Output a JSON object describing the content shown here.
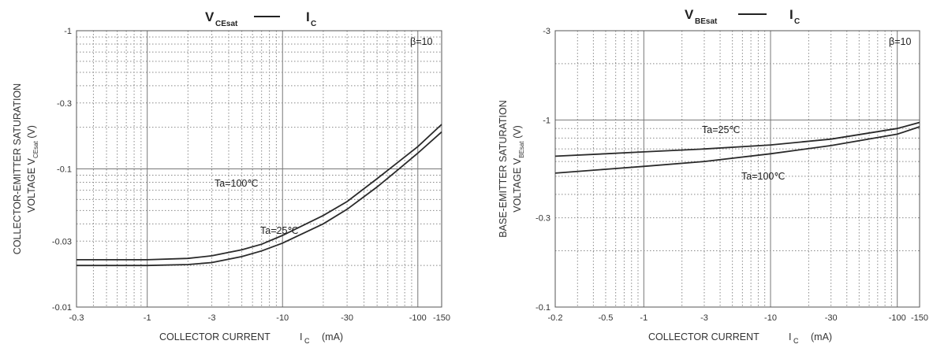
{
  "chart_data": [
    {
      "type": "line",
      "title_main": "V",
      "title_sub": "CEsat",
      "title_right_main": "I",
      "title_right_sub": "C",
      "xlabel": "COLLECTOR CURRENT",
      "xlabel_symbol": "I",
      "xlabel_symbol_sub": "C",
      "xlabel_unit": "(mA)",
      "ylabel_line1": "COLLECTOR-EMITTER SATURATION",
      "ylabel_line2_prefix": "VOLTAGE",
      "ylabel_symbol": "V",
      "ylabel_symbol_sub": "CEsat",
      "ylabel_unit": "(V)",
      "x_scale": "log",
      "y_scale": "log",
      "xlim": [
        -0.3,
        -150
      ],
      "ylim": [
        -0.01,
        -1
      ],
      "x_ticks": [
        "-0.3",
        "-1",
        "-3",
        "-10",
        "-30",
        "-100",
        "-150"
      ],
      "y_ticks": [
        "-1",
        "-0.3",
        "-0.1",
        "-0.03",
        "-0.01"
      ],
      "note": "β=10",
      "series": [
        {
          "name": "Ta=100℃",
          "x": [
            -0.3,
            -1,
            -2,
            -3,
            -5,
            -7,
            -10,
            -20,
            -30,
            -50,
            -70,
            -100,
            -150
          ],
          "y": [
            -0.022,
            -0.022,
            -0.0225,
            -0.0235,
            -0.026,
            -0.0285,
            -0.033,
            -0.046,
            -0.058,
            -0.085,
            -0.11,
            -0.145,
            -0.21
          ]
        },
        {
          "name": "Ta=25℃",
          "x": [
            -0.3,
            -1,
            -2,
            -3,
            -5,
            -7,
            -10,
            -20,
            -30,
            -50,
            -70,
            -100,
            -150
          ],
          "y": [
            -0.02,
            -0.02,
            -0.0203,
            -0.021,
            -0.0232,
            -0.0255,
            -0.029,
            -0.04,
            -0.051,
            -0.074,
            -0.097,
            -0.13,
            -0.185
          ]
        }
      ]
    },
    {
      "type": "line",
      "title_main": "V",
      "title_sub": "BEsat",
      "title_right_main": "I",
      "title_right_sub": "C",
      "xlabel": "COLLECTOR CURRENT",
      "xlabel_symbol": "I",
      "xlabel_symbol_sub": "C",
      "xlabel_unit": "(mA)",
      "ylabel_line1": "BASE-EMITTER SATURATION",
      "ylabel_line2_prefix": "VOLTAGE",
      "ylabel_symbol": "V",
      "ylabel_symbol_sub": "BEsat",
      "ylabel_unit": "(V)",
      "x_scale": "log",
      "y_scale": "log",
      "xlim": [
        -0.2,
        -150
      ],
      "ylim": [
        -0.1,
        -3
      ],
      "x_ticks": [
        "-0.2",
        "-0.5",
        "-1",
        "-3",
        "-10",
        "-30",
        "-100",
        "-150"
      ],
      "y_ticks": [
        "-3",
        "-1",
        "-0.3",
        "-0.1"
      ],
      "note": "β=10",
      "series": [
        {
          "name": "Ta=25℃",
          "x": [
            -0.2,
            -0.5,
            -1,
            -3,
            -10,
            -30,
            -100,
            -150
          ],
          "y": [
            -0.64,
            -0.66,
            -0.675,
            -0.7,
            -0.735,
            -0.79,
            -0.9,
            -0.97
          ]
        },
        {
          "name": "Ta=100℃",
          "x": [
            -0.2,
            -0.5,
            -1,
            -3,
            -10,
            -30,
            -100,
            -150
          ],
          "y": [
            -0.52,
            -0.545,
            -0.565,
            -0.6,
            -0.66,
            -0.73,
            -0.84,
            -0.92
          ]
        }
      ]
    }
  ]
}
